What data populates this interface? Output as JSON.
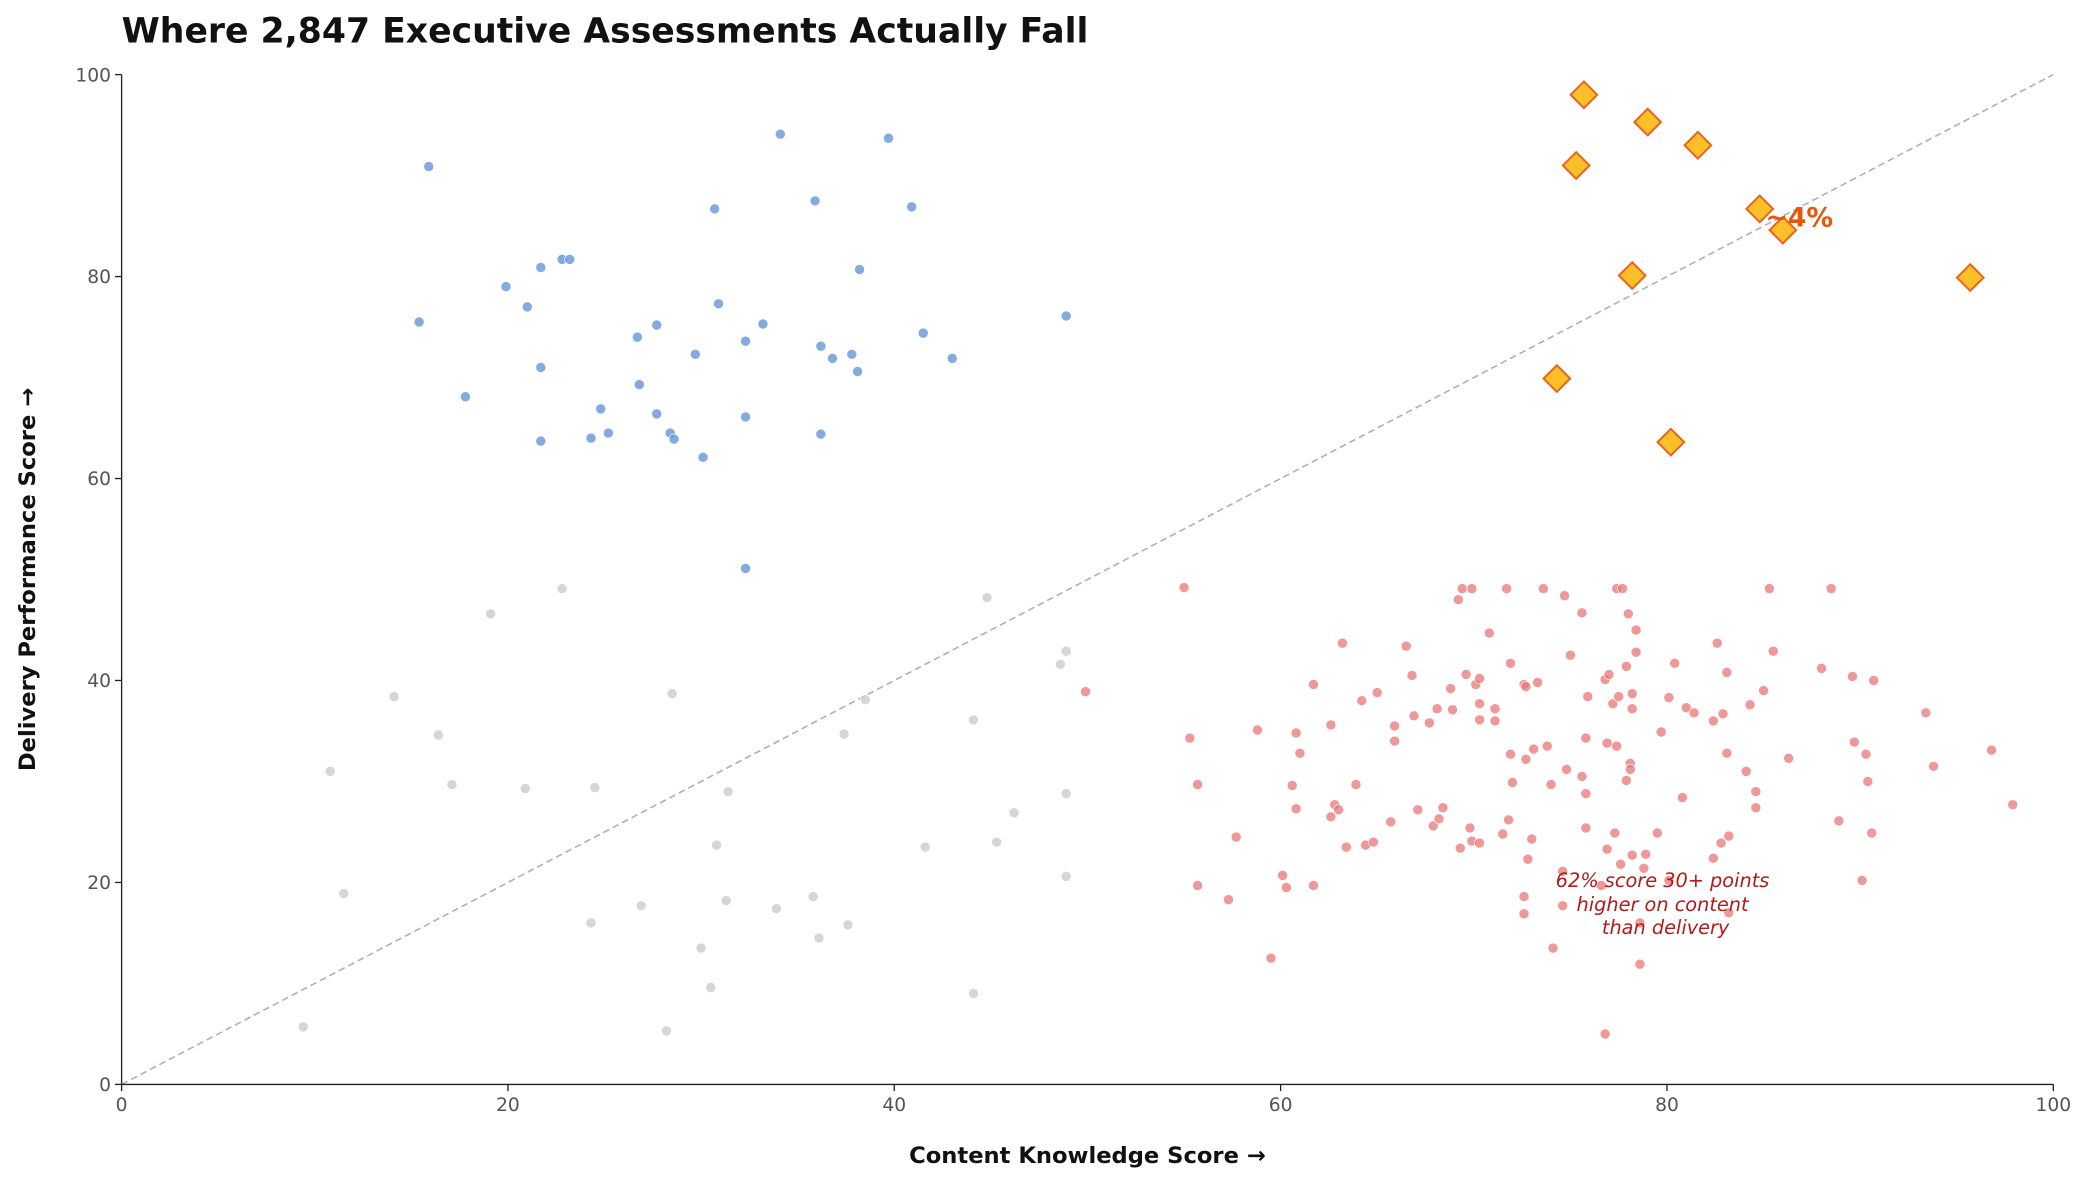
{
  "chart_data": {
    "type": "scatter",
    "title": "Where 2,847 Executive Assessments Actually Fall",
    "xlabel": "Content Knowledge Score →",
    "ylabel": "Delivery Performance Score →",
    "xlim": [
      0,
      100
    ],
    "ylim": [
      0,
      100
    ],
    "xticks": [
      0,
      20,
      40,
      60,
      80,
      100
    ],
    "yticks": [
      0,
      20,
      40,
      60,
      80,
      100
    ],
    "grid": false,
    "reference_line": {
      "style": "dashed",
      "from": [
        0,
        0
      ],
      "to": [
        100,
        100
      ],
      "color": "#b0b0b0"
    },
    "series": [
      {
        "color": "#5b8fd6",
        "marker": "circle",
        "points": [
          [
            15.9,
            90.9
          ],
          [
            15.4,
            75.5
          ],
          [
            17.8,
            68.1
          ],
          [
            19.9,
            79.0
          ],
          [
            21.0,
            77.0
          ],
          [
            21.7,
            80.9
          ],
          [
            21.7,
            71.0
          ],
          [
            21.7,
            63.7
          ],
          [
            22.8,
            81.7
          ],
          [
            23.2,
            81.7
          ],
          [
            24.3,
            64.0
          ],
          [
            24.8,
            66.9
          ],
          [
            25.2,
            64.5
          ],
          [
            26.7,
            74.0
          ],
          [
            26.8,
            69.3
          ],
          [
            27.7,
            75.2
          ],
          [
            27.7,
            66.4
          ],
          [
            28.4,
            64.5
          ],
          [
            28.6,
            63.9
          ],
          [
            30.7,
            86.7
          ],
          [
            30.9,
            77.3
          ],
          [
            29.7,
            72.3
          ],
          [
            30.1,
            62.1
          ],
          [
            32.3,
            73.6
          ],
          [
            32.3,
            66.1
          ],
          [
            33.2,
            75.3
          ],
          [
            34.1,
            94.1
          ],
          [
            35.9,
            87.5
          ],
          [
            36.2,
            73.1
          ],
          [
            36.8,
            71.9
          ],
          [
            37.8,
            72.3
          ],
          [
            38.1,
            70.6
          ],
          [
            38.2,
            80.7
          ],
          [
            36.2,
            64.4
          ],
          [
            39.7,
            93.7
          ],
          [
            40.9,
            86.9
          ],
          [
            41.5,
            74.4
          ],
          [
            43.0,
            71.9
          ],
          [
            48.9,
            76.1
          ],
          [
            32.3,
            51.1
          ]
        ]
      },
      {
        "color": "#c8c8c8",
        "marker": "circle",
        "points": [
          [
            22.8,
            49.1
          ],
          [
            19.1,
            46.6
          ],
          [
            14.1,
            38.4
          ],
          [
            16.4,
            34.6
          ],
          [
            10.8,
            31.0
          ],
          [
            17.1,
            29.7
          ],
          [
            20.9,
            29.3
          ],
          [
            24.5,
            29.4
          ],
          [
            28.5,
            38.7
          ],
          [
            31.4,
            29.0
          ],
          [
            30.8,
            23.7
          ],
          [
            31.3,
            18.2
          ],
          [
            26.9,
            17.7
          ],
          [
            24.3,
            16.0
          ],
          [
            11.5,
            18.9
          ],
          [
            9.4,
            5.7
          ],
          [
            28.2,
            5.3
          ],
          [
            30.5,
            9.6
          ],
          [
            30.0,
            13.5
          ],
          [
            33.9,
            17.4
          ],
          [
            35.8,
            18.6
          ],
          [
            36.1,
            14.5
          ],
          [
            37.6,
            15.8
          ],
          [
            37.4,
            34.7
          ],
          [
            38.5,
            38.1
          ],
          [
            41.6,
            23.5
          ],
          [
            44.1,
            36.1
          ],
          [
            44.8,
            48.2
          ],
          [
            45.3,
            24.0
          ],
          [
            46.2,
            26.9
          ],
          [
            48.6,
            41.6
          ],
          [
            48.9,
            42.9
          ],
          [
            48.9,
            28.8
          ],
          [
            48.9,
            20.6
          ],
          [
            44.1,
            9.0
          ]
        ]
      },
      {
        "color": "#e87676",
        "marker": "circle",
        "points": [
          [
            55.0,
            49.2
          ],
          [
            55.3,
            34.3
          ],
          [
            55.7,
            29.7
          ],
          [
            55.7,
            19.7
          ],
          [
            57.3,
            18.3
          ],
          [
            57.7,
            24.5
          ],
          [
            58.8,
            35.1
          ],
          [
            59.5,
            12.5
          ],
          [
            60.1,
            20.7
          ],
          [
            60.3,
            19.5
          ],
          [
            60.6,
            29.6
          ],
          [
            60.8,
            27.3
          ],
          [
            60.8,
            34.8
          ],
          [
            61.0,
            32.8
          ],
          [
            61.7,
            19.7
          ],
          [
            61.7,
            39.6
          ],
          [
            62.6,
            35.6
          ],
          [
            62.6,
            26.5
          ],
          [
            62.8,
            27.7
          ],
          [
            63.0,
            27.2
          ],
          [
            63.2,
            43.7
          ],
          [
            63.4,
            23.5
          ],
          [
            63.9,
            29.7
          ],
          [
            64.2,
            38.0
          ],
          [
            64.4,
            23.7
          ],
          [
            64.8,
            24.0
          ],
          [
            65.0,
            38.8
          ],
          [
            65.7,
            26.0
          ],
          [
            65.9,
            35.5
          ],
          [
            65.9,
            34.0
          ],
          [
            66.5,
            43.4
          ],
          [
            66.8,
            40.5
          ],
          [
            66.9,
            36.5
          ],
          [
            67.1,
            27.2
          ],
          [
            67.7,
            35.8
          ],
          [
            67.9,
            25.6
          ],
          [
            68.1,
            37.2
          ],
          [
            68.2,
            26.3
          ],
          [
            68.4,
            27.4
          ],
          [
            68.8,
            39.2
          ],
          [
            68.9,
            37.1
          ],
          [
            69.2,
            48.0
          ],
          [
            69.4,
            49.1
          ],
          [
            69.3,
            23.4
          ],
          [
            69.6,
            40.6
          ],
          [
            69.8,
            25.4
          ],
          [
            69.9,
            49.1
          ],
          [
            69.9,
            24.1
          ],
          [
            70.1,
            39.6
          ],
          [
            70.3,
            40.2
          ],
          [
            70.3,
            36.1
          ],
          [
            70.3,
            37.7
          ],
          [
            70.3,
            23.9
          ],
          [
            70.8,
            44.7
          ],
          [
            71.1,
            36.0
          ],
          [
            71.1,
            37.2
          ],
          [
            71.5,
            24.8
          ],
          [
            71.7,
            49.1
          ],
          [
            71.8,
            26.2
          ],
          [
            71.9,
            41.7
          ],
          [
            71.9,
            32.7
          ],
          [
            72.0,
            29.9
          ],
          [
            72.6,
            39.6
          ],
          [
            72.6,
            18.6
          ],
          [
            72.6,
            16.9
          ],
          [
            72.7,
            39.4
          ],
          [
            72.7,
            32.2
          ],
          [
            72.8,
            22.3
          ],
          [
            73.0,
            24.3
          ],
          [
            73.1,
            33.2
          ],
          [
            73.3,
            39.8
          ],
          [
            73.6,
            49.1
          ],
          [
            73.8,
            33.5
          ],
          [
            74.0,
            29.7
          ],
          [
            74.1,
            13.5
          ],
          [
            74.7,
            48.4
          ],
          [
            74.8,
            31.2
          ],
          [
            75.0,
            42.5
          ],
          [
            74.6,
            17.7
          ],
          [
            74.6,
            21.1
          ],
          [
            75.6,
            46.7
          ],
          [
            75.6,
            30.5
          ],
          [
            75.8,
            34.3
          ],
          [
            75.8,
            28.8
          ],
          [
            75.8,
            25.4
          ],
          [
            75.9,
            38.4
          ],
          [
            76.6,
            19.7
          ],
          [
            76.8,
            5.0
          ],
          [
            76.8,
            40.1
          ],
          [
            76.9,
            23.3
          ],
          [
            76.9,
            33.8
          ],
          [
            77.0,
            40.6
          ],
          [
            77.2,
            37.7
          ],
          [
            77.3,
            24.9
          ],
          [
            77.4,
            49.1
          ],
          [
            77.4,
            33.5
          ],
          [
            77.5,
            38.4
          ],
          [
            77.6,
            21.8
          ],
          [
            77.7,
            49.1
          ],
          [
            77.9,
            41.4
          ],
          [
            77.9,
            30.1
          ],
          [
            78.0,
            46.6
          ],
          [
            78.1,
            31.8
          ],
          [
            78.1,
            31.2
          ],
          [
            78.2,
            37.2
          ],
          [
            78.2,
            38.7
          ],
          [
            78.2,
            22.7
          ],
          [
            78.4,
            42.8
          ],
          [
            78.4,
            45.0
          ],
          [
            78.6,
            16.0
          ],
          [
            78.6,
            11.9
          ],
          [
            78.8,
            21.4
          ],
          [
            78.9,
            22.8
          ],
          [
            79.5,
            24.9
          ],
          [
            79.7,
            34.9
          ],
          [
            80.1,
            38.3
          ],
          [
            80.1,
            20.2
          ],
          [
            80.4,
            41.7
          ],
          [
            80.8,
            28.4
          ],
          [
            81.0,
            37.3
          ],
          [
            81.4,
            36.8
          ],
          [
            82.4,
            36.0
          ],
          [
            82.4,
            22.4
          ],
          [
            82.6,
            43.7
          ],
          [
            82.8,
            23.9
          ],
          [
            82.9,
            36.7
          ],
          [
            83.1,
            40.8
          ],
          [
            83.1,
            32.8
          ],
          [
            83.2,
            24.6
          ],
          [
            83.2,
            17.0
          ],
          [
            84.1,
            31.0
          ],
          [
            84.3,
            37.6
          ],
          [
            84.6,
            27.4
          ],
          [
            84.6,
            29.0
          ],
          [
            85.0,
            39.0
          ],
          [
            85.3,
            49.1
          ],
          [
            85.5,
            42.9
          ],
          [
            86.3,
            32.3
          ],
          [
            88.0,
            41.2
          ],
          [
            88.5,
            49.1
          ],
          [
            88.9,
            26.1
          ],
          [
            89.6,
            40.4
          ],
          [
            89.7,
            33.9
          ],
          [
            90.1,
            20.2
          ],
          [
            90.3,
            32.7
          ],
          [
            90.4,
            30.0
          ],
          [
            90.6,
            24.9
          ],
          [
            90.7,
            40.0
          ],
          [
            93.4,
            36.8
          ],
          [
            93.8,
            31.5
          ],
          [
            96.8,
            33.1
          ],
          [
            97.9,
            27.7
          ],
          [
            49.9,
            38.9
          ]
        ]
      },
      {
        "color": "#fbbf2a",
        "stroke": "#e8651e",
        "marker": "diamond",
        "points": [
          [
            75.7,
            98.0
          ],
          [
            79.0,
            95.3
          ],
          [
            81.6,
            93.0
          ],
          [
            75.3,
            91.0
          ],
          [
            84.8,
            86.7
          ],
          [
            86.0,
            84.6
          ],
          [
            78.2,
            80.1
          ],
          [
            95.7,
            79.9
          ],
          [
            74.3,
            69.9
          ],
          [
            80.2,
            63.6
          ]
        ]
      }
    ],
    "annotations": [
      {
        "text": "~4%",
        "at": [
          86.5,
          85.5
        ],
        "color": "#e8560a",
        "style": "bold"
      },
      {
        "lines": [
          "62% score 30+ points",
          "higher on content",
          "than delivery"
        ],
        "at": [
          80,
          20
        ],
        "color": "#b01c1c",
        "style": "italic"
      }
    ]
  }
}
